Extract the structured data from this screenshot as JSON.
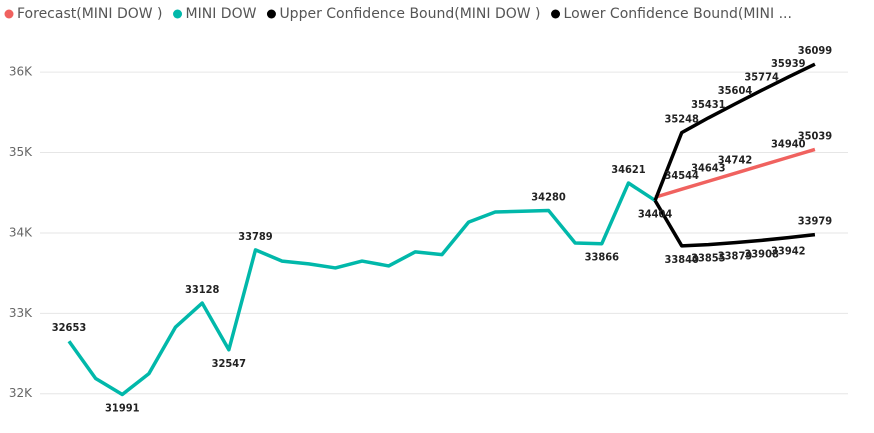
{
  "chart_data": {
    "type": "line",
    "categories": [
      null,
      null,
      null,
      null,
      null,
      null,
      null,
      null,
      null,
      null,
      null,
      null,
      null,
      null,
      null,
      null,
      null,
      null,
      null,
      null,
      null,
      null,
      null,
      null,
      null,
      null,
      null,
      null,
      null
    ],
    "series": [
      {
        "name": "Forecast(MINI DOW )",
        "color": "#f0625f",
        "values": [
          null,
          null,
          null,
          null,
          null,
          null,
          null,
          null,
          null,
          null,
          null,
          null,
          null,
          null,
          null,
          null,
          null,
          null,
          null,
          null,
          null,
          null,
          34444,
          34544,
          34643,
          34742,
          34841,
          34940,
          35039
        ],
        "labels": [
          23,
          24,
          25,
          27,
          28
        ]
      },
      {
        "name": "MINI DOW",
        "color": "#01b8aa",
        "values": [
          32653,
          32190,
          31991,
          32250,
          32830,
          33128,
          32547,
          33789,
          33650,
          33615,
          33565,
          33650,
          33590,
          33765,
          33730,
          34135,
          34260,
          34270,
          34280,
          33875,
          33866,
          34621,
          34404,
          null,
          null,
          null,
          null,
          null,
          null
        ],
        "labels": [
          0,
          2,
          5,
          6,
          7,
          18,
          20,
          21,
          22
        ]
      },
      {
        "name": "Upper Confidence Bound(MINI DOW )",
        "color": "#000000",
        "values": [
          null,
          null,
          null,
          null,
          null,
          null,
          null,
          null,
          null,
          null,
          null,
          null,
          null,
          null,
          null,
          null,
          null,
          null,
          null,
          null,
          null,
          null,
          34404,
          35248,
          35431,
          35604,
          35774,
          35939,
          36099
        ],
        "labels": [
          23,
          24,
          25,
          26,
          27,
          28
        ]
      },
      {
        "name": "Lower Confidence Bound(MINI ...",
        "color": "#000000",
        "values": [
          null,
          null,
          null,
          null,
          null,
          null,
          null,
          null,
          null,
          null,
          null,
          null,
          null,
          null,
          null,
          null,
          null,
          null,
          null,
          null,
          null,
          null,
          34404,
          33840,
          33855,
          33879,
          33908,
          33942,
          33979
        ],
        "labels": [
          23,
          24,
          25,
          26,
          27,
          28
        ]
      }
    ],
    "ylim": [
      31860,
      36400
    ],
    "yticks": [
      {
        "value": 32000,
        "label": "32K"
      },
      {
        "value": 33000,
        "label": "33K"
      },
      {
        "value": 34000,
        "label": "34K"
      },
      {
        "value": 35000,
        "label": "35K"
      },
      {
        "value": 36000,
        "label": "36K"
      }
    ],
    "grid": true,
    "legend": "top"
  }
}
